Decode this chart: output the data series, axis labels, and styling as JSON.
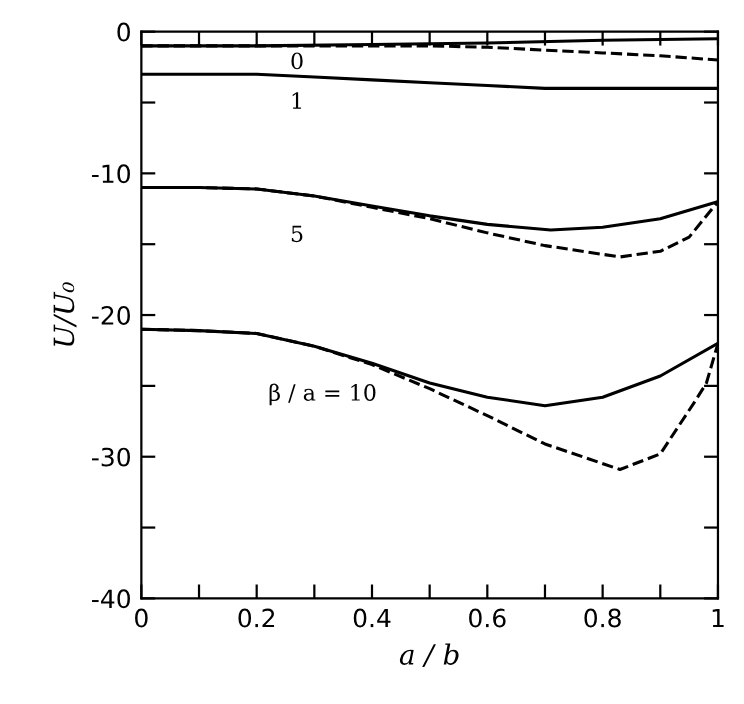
{
  "chart_data": {
    "type": "line",
    "xlabel": "a / b",
    "ylabel": "U/U₀",
    "xlim": [
      0,
      1
    ],
    "ylim": [
      -40,
      0
    ],
    "xticks": [
      0,
      {
        "value": 0.1,
        "label": null
      },
      0.2,
      {
        "value": 0.3,
        "label": null
      },
      0.4,
      {
        "value": 0.5,
        "label": null
      },
      0.6,
      {
        "value": 0.7,
        "label": null
      },
      0.8,
      {
        "value": 0.9,
        "label": null
      },
      1
    ],
    "yticks": [
      -40,
      {
        "value": -35,
        "label": null
      },
      -30,
      {
        "value": -25,
        "label": null
      },
      -20,
      {
        "value": -15,
        "label": null
      },
      -10,
      {
        "value": -5,
        "label": null
      },
      0
    ],
    "grid": false,
    "legend": false,
    "marker": "none",
    "series": [
      {
        "color": "#000000",
        "line_style": "solid",
        "x": [
          0,
          0.2,
          0.4,
          0.6,
          0.8,
          1
        ],
        "values": [
          -1,
          -1,
          -0.9,
          -0.8,
          -0.6,
          -0.5
        ]
      },
      {
        "color": "#000000",
        "line_style": "dashed",
        "x": [
          0,
          0.2,
          0.4,
          0.5,
          0.6,
          0.7,
          0.8,
          0.9,
          1
        ],
        "values": [
          -1,
          -1,
          -1,
          -1,
          -1.1,
          -1.3,
          -1.5,
          -1.7,
          -2
        ]
      },
      {
        "color": "#000000",
        "line_style": "solid",
        "x": [
          0,
          0.2,
          0.3,
          0.4,
          0.5,
          0.6,
          0.7,
          0.8,
          0.9,
          1
        ],
        "values": [
          -3,
          -3,
          -3.2,
          -3.4,
          -3.6,
          -3.8,
          -4,
          -4,
          -4,
          -4
        ]
      },
      {
        "color": "#000000",
        "line_style": "solid",
        "x": [
          0,
          0.1,
          0.2,
          0.3,
          0.4,
          0.5,
          0.6,
          0.71,
          0.8,
          0.9,
          1
        ],
        "values": [
          -11,
          -11,
          -11.1,
          -11.6,
          -12.3,
          -13,
          -13.6,
          -14,
          -13.8,
          -13.2,
          -12
        ]
      },
      {
        "color": "#000000",
        "line_style": "dashed",
        "x": [
          0,
          0.1,
          0.2,
          0.3,
          0.4,
          0.5,
          0.6,
          0.7,
          0.83,
          0.9,
          0.95,
          1
        ],
        "values": [
          -11,
          -11,
          -11.1,
          -11.6,
          -12.4,
          -13.2,
          -14.2,
          -15.1,
          -15.9,
          -15.5,
          -14.5,
          -12
        ]
      },
      {
        "color": "#000000",
        "line_style": "solid",
        "x": [
          0,
          0.1,
          0.2,
          0.3,
          0.4,
          0.5,
          0.6,
          0.7,
          0.8,
          0.9,
          1
        ],
        "values": [
          -21,
          -21.1,
          -21.3,
          -22.2,
          -23.4,
          -24.8,
          -25.8,
          -26.4,
          -25.8,
          -24.3,
          -22
        ]
      },
      {
        "color": "#000000",
        "line_style": "dashed",
        "x": [
          0,
          0.1,
          0.2,
          0.3,
          0.4,
          0.5,
          0.6,
          0.7,
          0.83,
          0.9,
          0.96,
          0.98,
          1
        ],
        "values": [
          -21,
          -21.1,
          -21.3,
          -22.2,
          -23.5,
          -25.2,
          -27.1,
          -29.1,
          -30.9,
          -29.8,
          -26.1,
          -24.8,
          -22
        ]
      }
    ],
    "annotations": [
      "0",
      "1",
      "5",
      "β / a = 10"
    ]
  }
}
